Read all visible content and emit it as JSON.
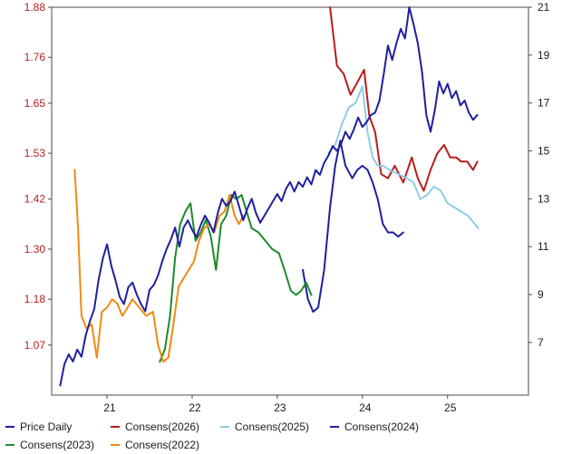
{
  "chart_data": {
    "type": "line",
    "title": "",
    "xlabel": "",
    "ylabel": "",
    "x_ticks": [
      "21",
      "22",
      "23",
      "24",
      "25"
    ],
    "x_range": [
      2020.35,
      2025.95
    ],
    "y_left": {
      "ticks": [
        "1.88",
        "1.76",
        "1.65",
        "1.53",
        "1.42",
        "1.30",
        "1.18",
        "1.07"
      ],
      "range": [
        0.95,
        1.88
      ],
      "color": "#b81c1c"
    },
    "y_right": {
      "ticks": [
        "21",
        "19",
        "17",
        "15",
        "13",
        "11",
        "9",
        "7"
      ],
      "range": [
        4.8,
        21
      ]
    },
    "grid": false,
    "legend_position": "bottom",
    "series": [
      {
        "name": "Price Daily",
        "axis": "right",
        "color": "#1f1fa0",
        "x": [
          2020.45,
          2020.5,
          2020.55,
          2020.6,
          2020.65,
          2020.7,
          2020.75,
          2020.8,
          2020.85,
          2020.9,
          2020.95,
          2021.0,
          2021.05,
          2021.1,
          2021.15,
          2021.2,
          2021.25,
          2021.3,
          2021.35,
          2021.4,
          2021.45,
          2021.5,
          2021.55,
          2021.6,
          2021.65,
          2021.7,
          2021.75,
          2021.8,
          2021.85,
          2021.9,
          2021.95,
          2022.0,
          2022.05,
          2022.1,
          2022.15,
          2022.2,
          2022.25,
          2022.3,
          2022.35,
          2022.4,
          2022.45,
          2022.5,
          2022.55,
          2022.6,
          2022.65,
          2022.7,
          2022.75,
          2022.8,
          2022.85,
          2022.9,
          2022.95,
          2023.0,
          2023.05,
          2023.1,
          2023.15,
          2023.2,
          2023.25,
          2023.3,
          2023.35,
          2023.4,
          2023.45,
          2023.5,
          2023.55,
          2023.6,
          2023.65,
          2023.7,
          2023.75,
          2023.8,
          2023.85,
          2023.9,
          2023.95,
          2024.0,
          2024.05,
          2024.1,
          2024.15,
          2024.2,
          2024.25,
          2024.3,
          2024.35,
          2024.4,
          2024.45,
          2024.5,
          2024.55,
          2024.6,
          2024.65,
          2024.7,
          2024.75,
          2024.8,
          2024.85,
          2024.9,
          2024.95,
          2025.0,
          2025.05,
          2025.1,
          2025.15,
          2025.2,
          2025.25,
          2025.3,
          2025.35
        ],
        "values": [
          5.2,
          6.1,
          6.5,
          6.2,
          6.7,
          6.4,
          7.3,
          7.9,
          8.4,
          9.6,
          10.5,
          11.1,
          10.2,
          9.6,
          8.9,
          8.6,
          9.3,
          9.5,
          9.0,
          8.6,
          8.3,
          9.2,
          9.4,
          9.8,
          10.4,
          10.9,
          11.3,
          11.8,
          11.0,
          11.8,
          12.1,
          11.7,
          11.4,
          11.9,
          12.3,
          12.0,
          11.6,
          12.4,
          13.0,
          12.7,
          12.9,
          13.3,
          12.7,
          12.1,
          12.6,
          13.0,
          12.4,
          12.0,
          12.3,
          12.6,
          12.9,
          13.2,
          12.9,
          13.4,
          13.7,
          13.3,
          13.7,
          13.5,
          13.9,
          13.6,
          14.2,
          14.0,
          14.5,
          14.8,
          15.2,
          15.0,
          15.3,
          15.8,
          15.5,
          15.9,
          16.4,
          16.0,
          16.2,
          16.5,
          16.6,
          17.1,
          18.2,
          19.4,
          18.8,
          19.5,
          20.1,
          19.7,
          21.0,
          20.3,
          19.5,
          18.3,
          16.5,
          15.8,
          16.7,
          17.9,
          17.4,
          17.8,
          17.2,
          17.5,
          16.9,
          17.1,
          16.6,
          16.3,
          16.5
        ]
      },
      {
        "name": "Consens(2026)",
        "axis": "left",
        "color": "#b81c1c",
        "x": [
          2023.62,
          2023.7,
          2023.78,
          2023.86,
          2023.94,
          2024.02,
          2024.08,
          2024.15,
          2024.22,
          2024.3,
          2024.38,
          2024.48,
          2024.58,
          2024.65,
          2024.72,
          2024.8,
          2024.88,
          2024.96,
          2025.03,
          2025.1,
          2025.16,
          2025.23,
          2025.3,
          2025.35
        ],
        "values": [
          1.88,
          1.74,
          1.72,
          1.67,
          1.7,
          1.73,
          1.62,
          1.58,
          1.48,
          1.47,
          1.5,
          1.46,
          1.52,
          1.47,
          1.44,
          1.49,
          1.53,
          1.55,
          1.52,
          1.52,
          1.51,
          1.51,
          1.49,
          1.51
        ]
      },
      {
        "name": "Consens(2025)",
        "axis": "left",
        "color": "#8ecde6",
        "x": [
          2023.6,
          2023.68,
          2023.76,
          2023.84,
          2023.92,
          2024.0,
          2024.06,
          2024.12,
          2024.18,
          2024.24,
          2024.32,
          2024.42,
          2024.52,
          2024.6,
          2024.68,
          2024.76,
          2024.84,
          2024.92,
          2025.0,
          2025.08,
          2025.16,
          2025.24,
          2025.32,
          2025.36
        ],
        "values": [
          1.53,
          1.55,
          1.6,
          1.64,
          1.65,
          1.69,
          1.58,
          1.52,
          1.5,
          1.5,
          1.49,
          1.48,
          1.47,
          1.46,
          1.42,
          1.43,
          1.45,
          1.44,
          1.41,
          1.4,
          1.39,
          1.38,
          1.36,
          1.35
        ]
      },
      {
        "name": "Consens(2024)",
        "axis": "left",
        "color": "#1f1fa0",
        "x": [
          2023.3,
          2023.36,
          2023.42,
          2023.48,
          2023.55,
          2023.62,
          2023.68,
          2023.74,
          2023.8,
          2023.88,
          2023.94,
          2024.0,
          2024.06,
          2024.12,
          2024.18,
          2024.24,
          2024.3,
          2024.36,
          2024.42,
          2024.48
        ],
        "values": [
          1.25,
          1.18,
          1.15,
          1.16,
          1.25,
          1.4,
          1.5,
          1.56,
          1.5,
          1.47,
          1.49,
          1.5,
          1.49,
          1.46,
          1.42,
          1.36,
          1.34,
          1.34,
          1.33,
          1.34
        ]
      },
      {
        "name": "Consens(2023)",
        "axis": "left",
        "color": "#1d8a2a",
        "x": [
          2021.62,
          2021.68,
          2021.74,
          2021.8,
          2021.86,
          2021.92,
          2021.98,
          2022.04,
          2022.1,
          2022.16,
          2022.22,
          2022.28,
          2022.34,
          2022.4,
          2022.46,
          2022.52,
          2022.58,
          2022.64,
          2022.7,
          2022.78,
          2022.86,
          2022.94,
          2023.02,
          2023.1,
          2023.16,
          2023.22,
          2023.28,
          2023.34,
          2023.4
        ],
        "values": [
          1.03,
          1.06,
          1.14,
          1.28,
          1.36,
          1.39,
          1.41,
          1.32,
          1.34,
          1.37,
          1.33,
          1.25,
          1.36,
          1.38,
          1.43,
          1.42,
          1.43,
          1.39,
          1.35,
          1.34,
          1.32,
          1.3,
          1.29,
          1.24,
          1.2,
          1.19,
          1.2,
          1.22,
          1.19
        ]
      },
      {
        "name": "Consens(2022)",
        "axis": "left",
        "color": "#f08a12",
        "x": [
          2020.62,
          2020.66,
          2020.7,
          2020.76,
          2020.82,
          2020.88,
          2020.94,
          2021.0,
          2021.06,
          2021.12,
          2021.18,
          2021.24,
          2021.3,
          2021.38,
          2021.46,
          2021.54,
          2021.6,
          2021.66,
          2021.72,
          2021.78,
          2021.84,
          2021.9,
          2021.96,
          2022.02,
          2022.08,
          2022.14,
          2022.2,
          2022.26,
          2022.32,
          2022.38,
          2022.44,
          2022.5,
          2022.55,
          2022.6
        ],
        "values": [
          1.49,
          1.35,
          1.14,
          1.11,
          1.12,
          1.04,
          1.15,
          1.16,
          1.18,
          1.17,
          1.14,
          1.16,
          1.18,
          1.16,
          1.14,
          1.15,
          1.07,
          1.03,
          1.04,
          1.12,
          1.21,
          1.23,
          1.25,
          1.27,
          1.32,
          1.35,
          1.36,
          1.34,
          1.38,
          1.39,
          1.43,
          1.38,
          1.36,
          1.38
        ]
      }
    ]
  }
}
